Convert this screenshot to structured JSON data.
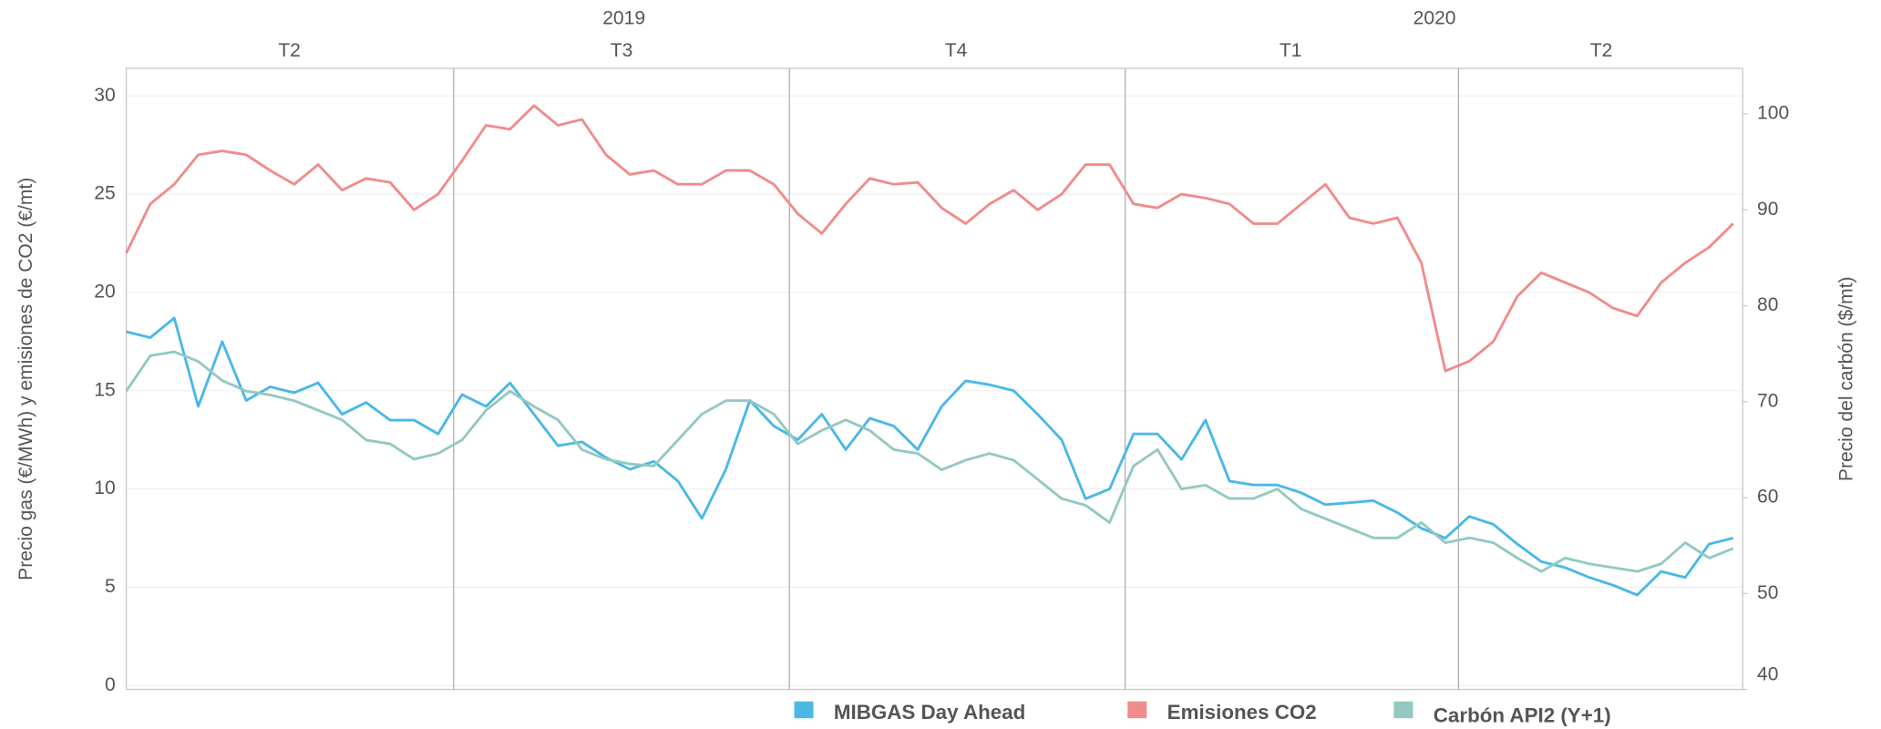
{
  "chart_data": {
    "type": "line",
    "ylabel": "Precio gas (€/MWh) y emisiones de CO2 (€/mt)",
    "y2label": "Precio del carbón ($/mt)",
    "years": [
      "2019",
      "2020"
    ],
    "quarters": [
      "T2",
      "T3",
      "T4",
      "T1",
      "T2"
    ],
    "ylim": [
      -0.2,
      31.4
    ],
    "yticks": [
      0,
      5,
      10,
      15,
      20,
      25,
      30
    ],
    "y2lim": [
      40,
      104.75
    ],
    "y2ticks": [
      40,
      50,
      60,
      70,
      80,
      90,
      100
    ],
    "grid": true,
    "series": [
      {
        "name": "MIBGAS Day Ahead",
        "color": "#4bb8e6",
        "axis": "y",
        "values": [
          18,
          17.7,
          18.7,
          14.2,
          17.5,
          14.5,
          15.2,
          14.9,
          15.4,
          13.8,
          14.4,
          13.5,
          13.5,
          12.8,
          14.8,
          14.2,
          15.4,
          13.8,
          12.2,
          12.4,
          11.6,
          11,
          11.4,
          10.4,
          8.5,
          11,
          14.5,
          13.2,
          12.5,
          13.8,
          12,
          13.6,
          13.2,
          12,
          14.2,
          15.5,
          15.3,
          15,
          13.8,
          12.5,
          9.5,
          10,
          12.8,
          12.8,
          11.5,
          13.5,
          10.4,
          10.2,
          10.2,
          9.8,
          9.2,
          9.3,
          9.4,
          8.8,
          8,
          7.5,
          8.6,
          8.2,
          7.2,
          6.3,
          6,
          5.5,
          5.1,
          4.6,
          5.8,
          5.5,
          7.2,
          7.5
        ]
      },
      {
        "name": "Emisiones CO2",
        "color": "#f08c8c",
        "axis": "y",
        "values": [
          22,
          24.5,
          25.5,
          27,
          27.2,
          27,
          26.2,
          25.5,
          26.5,
          25.2,
          25.8,
          25.6,
          24.2,
          25,
          26.7,
          28.5,
          28.3,
          29.5,
          28.5,
          28.8,
          27,
          26,
          26.2,
          25.5,
          25.5,
          26.2,
          26.2,
          25.5,
          24,
          23,
          24.5,
          25.8,
          25.5,
          25.6,
          24.3,
          23.5,
          24.5,
          25.2,
          24.2,
          25,
          26.5,
          26.5,
          24.5,
          24.3,
          25,
          24.8,
          24.5,
          23.5,
          23.5,
          24.5,
          25.5,
          23.8,
          23.5,
          23.8,
          21.5,
          16,
          16.5,
          17.5,
          19.8,
          21,
          20.5,
          20,
          19.2,
          18.8,
          20.5,
          21.5,
          22.3,
          23.5
        ]
      },
      {
        "name": "Carbón API2 (Y+1)",
        "color": "#93c9c3",
        "axis": "y2",
        "values": [
          71.1,
          74.8,
          75.2,
          74.2,
          72.2,
          71.1,
          70.7,
          70.1,
          69.1,
          68.1,
          66,
          65.6,
          64,
          64.6,
          66,
          69.1,
          71.1,
          69.5,
          68.1,
          65,
          64,
          63.5,
          63.3,
          66,
          68.7,
          70.1,
          70.1,
          68.7,
          65.6,
          67,
          68.1,
          67,
          65,
          64.6,
          62.9,
          63.9,
          64.6,
          63.9,
          61.9,
          59.9,
          59.2,
          57.4,
          63.3,
          65,
          60.9,
          61.3,
          59.9,
          59.9,
          60.9,
          58.8,
          57.8,
          56.8,
          55.8,
          55.8,
          57.4,
          55.3,
          55.8,
          55.3,
          53.7,
          52.3,
          53.7,
          53.1,
          52.7,
          52.3,
          53.1,
          55.3,
          53.7,
          54.7
        ]
      }
    ]
  }
}
